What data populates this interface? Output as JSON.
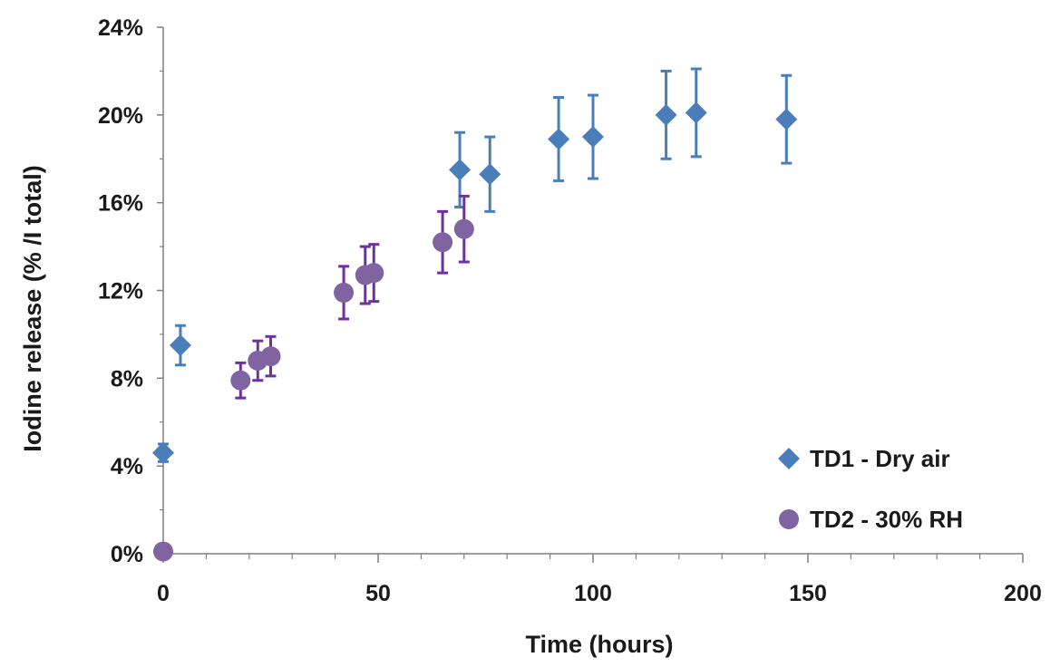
{
  "chart_data": {
    "type": "scatter",
    "title": "",
    "xlabel": "Time  (hours)",
    "ylabel": "Iodine release  (% /I total)",
    "xlim": [
      0,
      200
    ],
    "ylim": [
      0,
      0.24
    ],
    "x_ticks": [
      0,
      50,
      100,
      150,
      200
    ],
    "x_tick_labels": [
      "0",
      "50",
      "100",
      "150",
      "200"
    ],
    "y_ticks": [
      0,
      0.04,
      0.08,
      0.12,
      0.16,
      0.2,
      0.24
    ],
    "y_tick_labels": [
      "0%",
      "4%",
      "8%",
      "12%",
      "16%",
      "20%",
      "24%"
    ],
    "grid": false,
    "legend_position": "bottom-right",
    "series": [
      {
        "name": "TD1 - Dry air",
        "marker": "diamond",
        "color": "#4a7ebb",
        "x": [
          0,
          4,
          69,
          76,
          92,
          100,
          117,
          124,
          145
        ],
        "y": [
          0.046,
          0.095,
          0.175,
          0.173,
          0.189,
          0.19,
          0.2,
          0.201,
          0.198
        ],
        "err": [
          0.004,
          0.009,
          0.017,
          0.017,
          0.019,
          0.019,
          0.02,
          0.02,
          0.02
        ]
      },
      {
        "name": "TD2 - 30% RH",
        "marker": "circle",
        "color": "#8064a2",
        "error_color": "#7030a0",
        "x": [
          0,
          18,
          22,
          25,
          42,
          47,
          49,
          65,
          70
        ],
        "y": [
          0.001,
          0.079,
          0.088,
          0.09,
          0.119,
          0.127,
          0.128,
          0.142,
          0.148
        ],
        "err": [
          0,
          0.008,
          0.009,
          0.009,
          0.012,
          0.013,
          0.013,
          0.014,
          0.015
        ]
      }
    ]
  }
}
